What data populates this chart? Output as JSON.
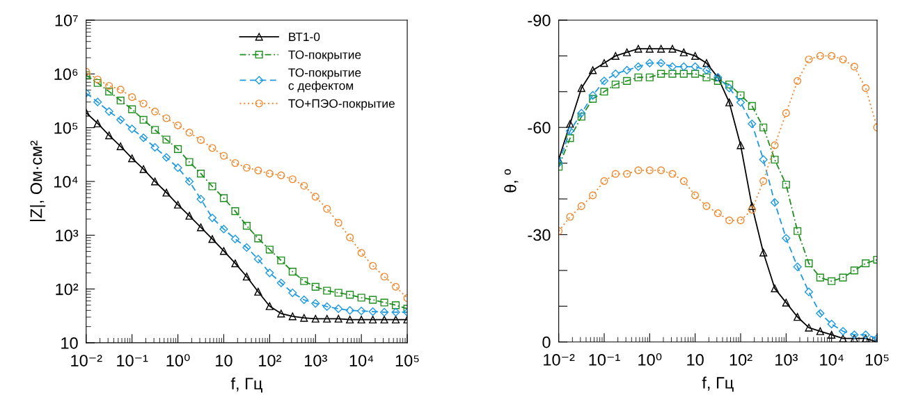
{
  "chart_data": [
    {
      "type": "line",
      "xlabel": "f, Гц",
      "ylabel": "|Z|, Ом·см²",
      "log": "xy",
      "legend": "top right",
      "grid": false,
      "x": [
        0.01,
        0.01778,
        0.03162,
        0.05623,
        0.1,
        0.1778,
        0.3162,
        0.5623,
        1,
        1.778,
        3.162,
        5.623,
        10,
        17.78,
        31.62,
        56.23,
        100,
        177.8,
        316.2,
        562.3,
        1000,
        1778,
        3162,
        5623,
        10000,
        17780,
        31620,
        56230,
        100000
      ],
      "xlim": [
        0.01,
        100000
      ],
      "xticks": [
        {
          "value": 0.01,
          "label": "10⁻²"
        },
        {
          "value": 0.1,
          "label": "10⁻¹"
        },
        {
          "value": 1,
          "label": "10⁰"
        },
        {
          "value": 10,
          "label": "10"
        },
        {
          "value": 100,
          "label": "10²"
        },
        {
          "value": 1000,
          "label": "10³"
        },
        {
          "value": 10000,
          "label": "10⁴"
        },
        {
          "value": 100000,
          "label": "10⁵"
        }
      ],
      "ylim": [
        10,
        10000000
      ],
      "yticks": [
        {
          "value": 10,
          "label": "10"
        },
        {
          "value": 100,
          "label": "10²"
        },
        {
          "value": 1000,
          "label": "10³"
        },
        {
          "value": 10000,
          "label": "10⁴"
        },
        {
          "value": 100000,
          "label": "10⁵"
        },
        {
          "value": 1000000,
          "label": "10⁶"
        },
        {
          "value": 10000000,
          "label": "10⁷"
        }
      ],
      "series": [
        {
          "name": "ВТ1-0",
          "color": "#000000",
          "marker": "triangle",
          "line_style": "solid",
          "values": [
            190000,
            120000,
            72000,
            45000,
            27000,
            17000,
            10000,
            6200,
            3700,
            2300,
            1400,
            850,
            510,
            300,
            170,
            89,
            48,
            35,
            31,
            29,
            28,
            28,
            28,
            27,
            27,
            27,
            27,
            27,
            27
          ]
        },
        {
          "name": "ТО-покрытие",
          "color": "#1f8f1f",
          "marker": "square",
          "line_style": "dashdot",
          "values": [
            950000,
            680000,
            470000,
            320000,
            220000,
            140000,
            91000,
            60000,
            40000,
            23000,
            14000,
            8100,
            4900,
            2800,
            1500,
            870,
            540,
            340,
            210,
            140,
            110,
            93,
            85,
            78,
            69,
            63,
            56,
            50,
            43
          ]
        },
        {
          "name": "ТО-покрытие\nс дефектом",
          "color": "#1e9be0",
          "marker": "diamond",
          "line_style": "dashed",
          "values": [
            440000,
            300000,
            200000,
            140000,
            95000,
            65000,
            43000,
            28000,
            18000,
            10000,
            4700,
            2100,
            1300,
            850,
            590,
            360,
            200,
            130,
            85,
            63,
            54,
            47,
            43,
            40,
            39,
            38,
            37,
            37,
            37
          ]
        },
        {
          "name": "ТО+ПЭО-покрытие",
          "color": "#f08a30",
          "marker": "circle",
          "line_style": "dotted",
          "values": [
            1100000,
            790000,
            600000,
            510000,
            370000,
            280000,
            200000,
            150000,
            110000,
            81000,
            59000,
            42000,
            30000,
            22000,
            18000,
            16000,
            14000,
            13000,
            11000,
            8300,
            5200,
            3100,
            1700,
            910,
            470,
            270,
            170,
            110,
            68
          ]
        }
      ]
    },
    {
      "type": "line",
      "xlabel": "f, Гц",
      "ylabel": "θ, º",
      "log": "x",
      "legend": false,
      "grid": false,
      "x": [
        0.01,
        0.01778,
        0.03162,
        0.05623,
        0.1,
        0.1778,
        0.3162,
        0.5623,
        1,
        1.778,
        3.162,
        5.623,
        10,
        17.78,
        31.62,
        56.23,
        100,
        177.8,
        316.2,
        562.3,
        1000,
        1778,
        3162,
        5623,
        10000,
        17780,
        31620,
        56230,
        100000
      ],
      "xlim": [
        0.01,
        100000
      ],
      "xticks": [
        {
          "value": 0.01,
          "label": "10⁻²"
        },
        {
          "value": 0.1,
          "label": "10⁻¹"
        },
        {
          "value": 1,
          "label": "10⁰"
        },
        {
          "value": 10,
          "label": "10"
        },
        {
          "value": 100,
          "label": "10²"
        },
        {
          "value": 1000,
          "label": "10³"
        },
        {
          "value": 10000,
          "label": "10⁴"
        },
        {
          "value": 100000,
          "label": "10⁵"
        }
      ],
      "ylim": [
        0,
        -90
      ],
      "yticks": [
        0,
        {
          "value": -10,
          "label": null
        },
        {
          "value": -20,
          "label": null
        },
        -30,
        {
          "value": -40,
          "label": null
        },
        {
          "value": -50,
          "label": null
        },
        -60,
        {
          "value": -70,
          "label": null
        },
        {
          "value": -80,
          "label": null
        },
        -90
      ],
      "series": [
        {
          "color": "#000000",
          "marker": "triangle",
          "line_style": "solid",
          "values": [
            -51,
            -61,
            -71,
            -76,
            -78,
            -80,
            -81,
            -82,
            -82,
            -82,
            -82,
            -81,
            -80,
            -78,
            -74,
            -67,
            -55,
            -38,
            -25,
            -15,
            -11,
            -7,
            -4,
            -3,
            -2,
            -1,
            -1,
            -1,
            0
          ]
        },
        {
          "color": "#1f8f1f",
          "marker": "square",
          "line_style": "dashdot",
          "values": [
            -49,
            -57,
            -63,
            -68,
            -70,
            -72,
            -73,
            -74,
            -74,
            -75,
            -75,
            -75,
            -75,
            -74,
            -73,
            -72,
            -69,
            -66,
            -60,
            -51,
            -44,
            -31,
            -22,
            -18,
            -17,
            -18,
            -20,
            -22,
            -23
          ]
        },
        {
          "color": "#1e9be0",
          "marker": "diamond",
          "line_style": "dashed",
          "values": [
            -50,
            -59,
            -64,
            -69,
            -73,
            -75,
            -76,
            -77,
            -78,
            -78,
            -77,
            -77,
            -77,
            -76,
            -74,
            -71,
            -67,
            -61,
            -51,
            -39,
            -29,
            -21,
            -14,
            -8,
            -5,
            -3,
            -2,
            -2,
            -1
          ]
        },
        {
          "color": "#f08a30",
          "marker": "circle",
          "line_style": "dotted",
          "values": [
            -31,
            -35,
            -38,
            -41,
            -45,
            -47,
            -47,
            -48,
            -48,
            -48,
            -47,
            -45,
            -41,
            -38,
            -36,
            -34,
            -34,
            -37,
            -45,
            -55,
            -64,
            -73,
            -79,
            -80,
            -80,
            -79,
            -77,
            -71,
            -60
          ]
        }
      ]
    }
  ]
}
